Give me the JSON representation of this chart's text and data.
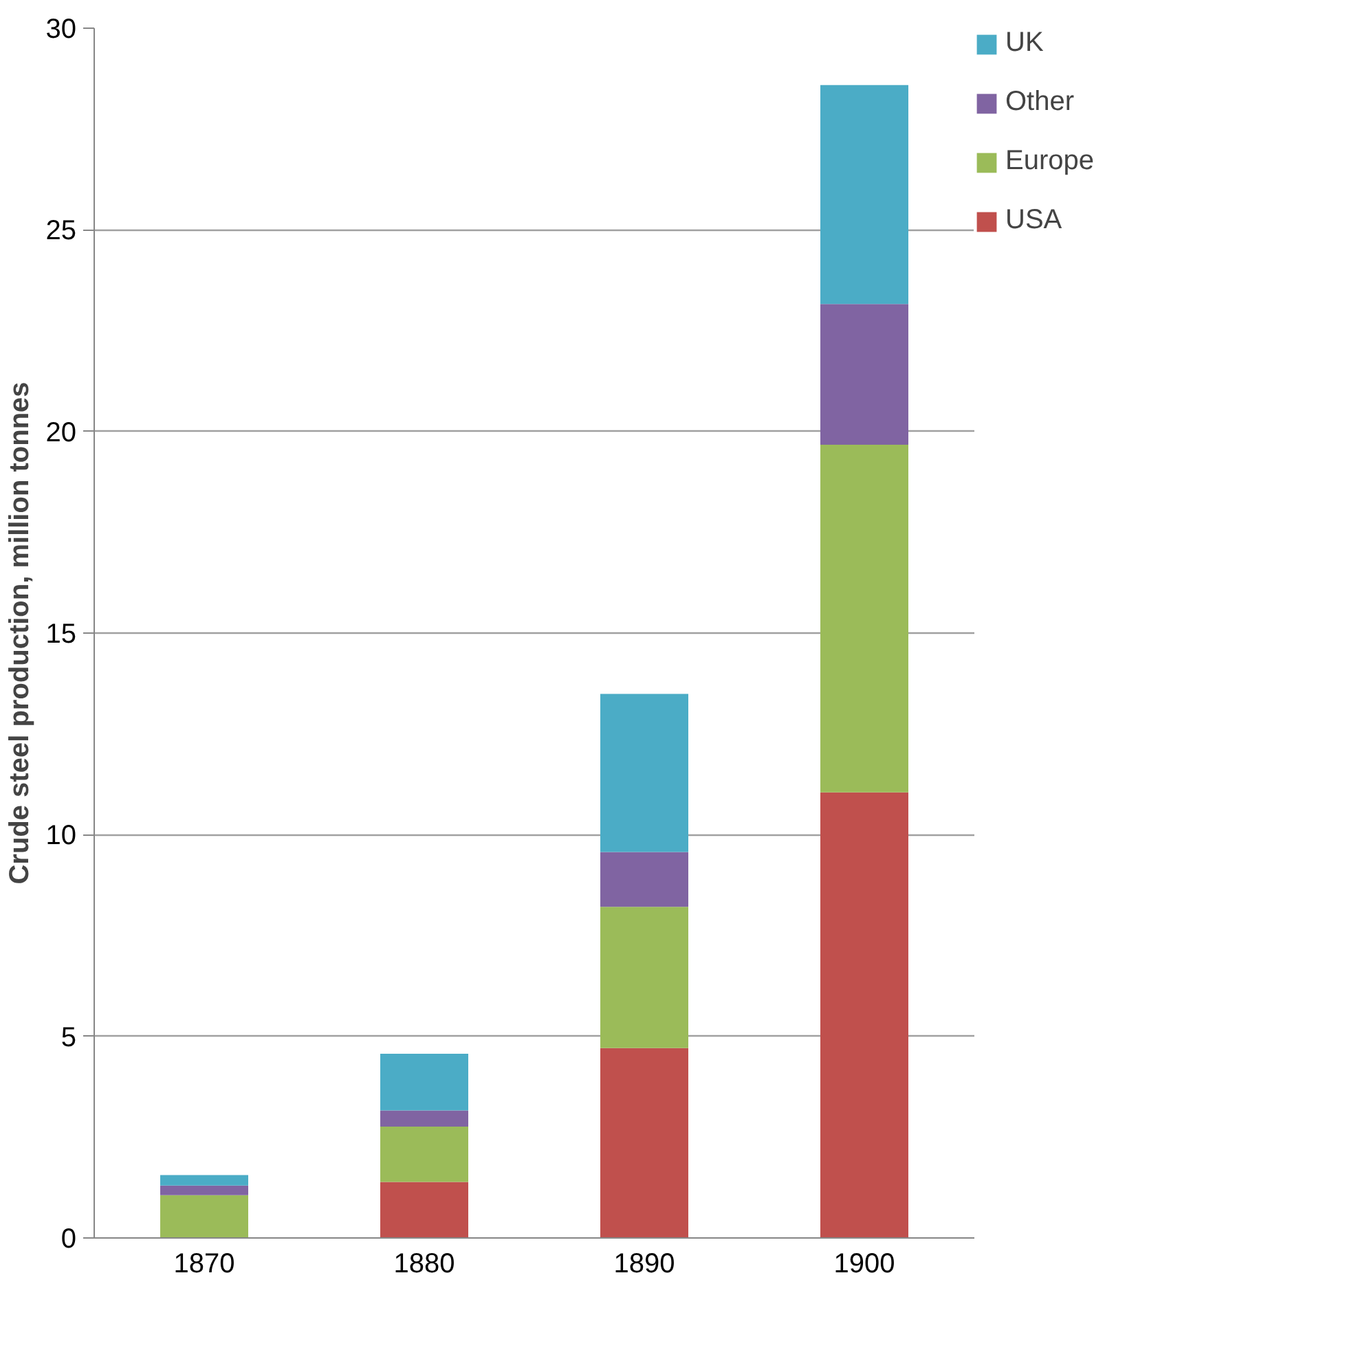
{
  "chart_data": {
    "type": "bar",
    "stacked": true,
    "ylabel": "Crude steel production, million tonnes",
    "categories": [
      "1870",
      "1880",
      "1890",
      "1900"
    ],
    "series": [
      {
        "name": "USA",
        "color": "#c0504d",
        "values": [
          0,
          1.39,
          4.71,
          11.05
        ]
      },
      {
        "name": "Europe",
        "color": "#9bbb59",
        "values": [
          1.06,
          1.37,
          3.5,
          8.62
        ]
      },
      {
        "name": "Other",
        "color": "#8064a2",
        "values": [
          0.24,
          0.4,
          1.36,
          3.49
        ]
      },
      {
        "name": "UK",
        "color": "#4bacc6",
        "values": [
          0.26,
          1.41,
          3.92,
          5.43
        ]
      }
    ],
    "ylim": [
      0,
      30
    ],
    "yticks": [
      0,
      5,
      10,
      15,
      20,
      25,
      30
    ],
    "grid": "y",
    "legend": "right"
  }
}
